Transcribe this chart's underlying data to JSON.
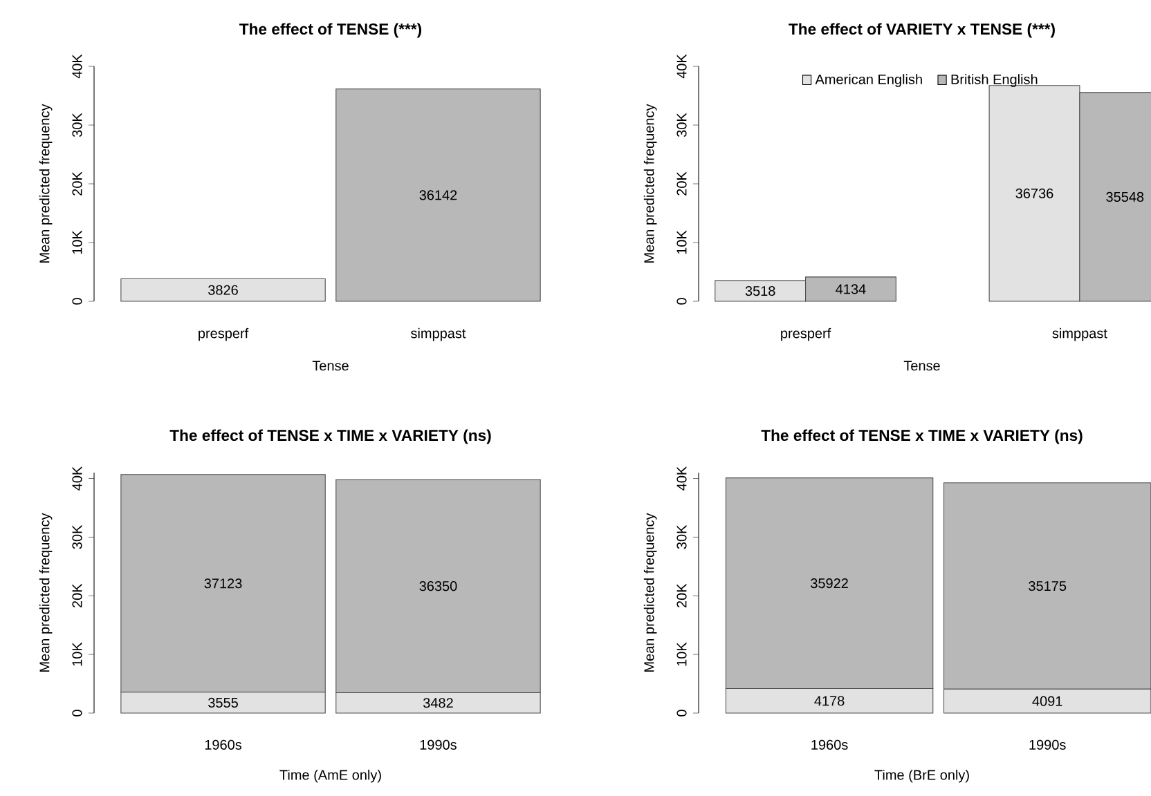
{
  "chart_data": [
    {
      "type": "bar",
      "title": "The effect of TENSE (***)",
      "xlabel": "Tense",
      "ylabel": "Mean predicted frequency",
      "categories": [
        "presperf",
        "simppast"
      ],
      "values": [
        3826,
        36142
      ],
      "colors": [
        "#e2e2e2",
        "#b8b8b8"
      ],
      "ylim": [
        0,
        40000
      ],
      "yticks": [
        0,
        {
          "value": 10000,
          "label": "10K"
        },
        {
          "value": 20000,
          "label": "20K"
        },
        {
          "value": 30000,
          "label": "30K"
        },
        {
          "value": 40000,
          "label": "40K"
        }
      ],
      "data_labels": true
    },
    {
      "type": "bar",
      "title": "The effect of VARIETY x TENSE (***)",
      "xlabel": "Tense",
      "ylabel": "Mean predicted frequency",
      "categories": [
        "presperf",
        "simppast"
      ],
      "series": [
        {
          "name": "American English",
          "color": "#e2e2e2",
          "values": [
            3518,
            36736
          ]
        },
        {
          "name": "British English",
          "color": "#b8b8b8",
          "values": [
            4134,
            35548
          ]
        }
      ],
      "ylim": [
        0,
        40000
      ],
      "yticks": [
        0,
        {
          "value": 10000,
          "label": "10K"
        },
        {
          "value": 20000,
          "label": "20K"
        },
        {
          "value": 30000,
          "label": "30K"
        },
        {
          "value": 40000,
          "label": "40K"
        }
      ],
      "data_labels": true,
      "legend": "top"
    },
    {
      "type": "bar",
      "title": "The effect of TENSE x TIME x VARIETY (ns)",
      "xlabel": "Time (AmE only)",
      "ylabel": "Mean predicted frequency",
      "categories": [
        "1960s",
        "1990s"
      ],
      "stacked": true,
      "series": [
        {
          "color": "#e2e2e2",
          "values": [
            3555,
            3482
          ]
        },
        {
          "color": "#b8b8b8",
          "values": [
            37123,
            36350
          ]
        }
      ],
      "ylim": [
        0,
        41000
      ],
      "yticks": [
        0,
        {
          "value": 10000,
          "label": "10K"
        },
        {
          "value": 20000,
          "label": "20K"
        },
        {
          "value": 30000,
          "label": "30K"
        },
        {
          "value": 40000,
          "label": "40K"
        }
      ],
      "data_labels": true
    },
    {
      "type": "bar",
      "title": "The effect of TENSE x TIME x VARIETY (ns)",
      "xlabel": "Time (BrE only)",
      "ylabel": "Mean predicted frequency",
      "categories": [
        "1960s",
        "1990s"
      ],
      "stacked": true,
      "series": [
        {
          "color": "#e2e2e2",
          "values": [
            4178,
            4091
          ]
        },
        {
          "color": "#b8b8b8",
          "values": [
            35922,
            35175
          ]
        }
      ],
      "ylim": [
        0,
        41000
      ],
      "yticks": [
        0,
        {
          "value": 10000,
          "label": "10K"
        },
        {
          "value": 20000,
          "label": "20K"
        },
        {
          "value": 30000,
          "label": "30K"
        },
        {
          "value": 40000,
          "label": "40K"
        }
      ],
      "data_labels": true
    }
  ]
}
